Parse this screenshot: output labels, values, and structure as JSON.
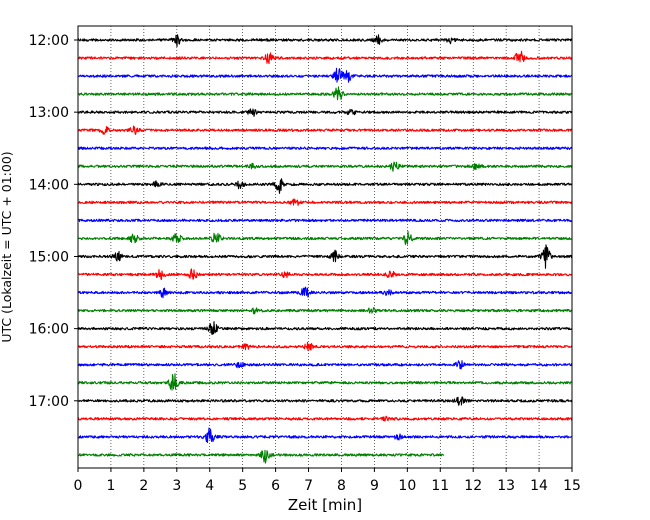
{
  "chart_data": {
    "type": "line",
    "title": "",
    "xlabel": "Zeit  [min]",
    "ylabel": "UTC (Lokalzeit = UTC + 01:00)",
    "xlim": [
      0,
      15
    ],
    "x_ticks": [
      "0",
      "1",
      "2",
      "3",
      "4",
      "5",
      "6",
      "7",
      "8",
      "9",
      "10",
      "11",
      "12",
      "13",
      "14",
      "15"
    ],
    "y_ticks": [
      "12:00",
      "13:00",
      "14:00",
      "15:00",
      "16:00",
      "17:00"
    ],
    "grid": "vertical dotted lines at each minute",
    "trace_interval_minutes": 15,
    "series_colors": [
      "#000000",
      "#ff0000",
      "#0000ff",
      "#008000"
    ],
    "traces": [
      {
        "start": "12:00",
        "color": "#000000",
        "events": [
          {
            "t": 3.0,
            "amp": 0.6
          },
          {
            "t": 9.1,
            "amp": 0.5
          },
          {
            "t": 11.3,
            "amp": 0.3
          }
        ]
      },
      {
        "start": "12:15",
        "color": "#ff0000",
        "events": [
          {
            "t": 5.8,
            "amp": 0.6
          },
          {
            "t": 13.4,
            "amp": 1.1
          }
        ]
      },
      {
        "start": "12:30",
        "color": "#0000ff",
        "events": [
          {
            "t": 7.9,
            "amp": 0.9
          },
          {
            "t": 8.2,
            "amp": 0.6
          }
        ]
      },
      {
        "start": "12:45",
        "color": "#008000",
        "events": [
          {
            "t": 7.9,
            "amp": 0.9
          }
        ]
      },
      {
        "start": "13:00",
        "color": "#000000",
        "events": [
          {
            "t": 5.3,
            "amp": 0.4
          },
          {
            "t": 8.3,
            "amp": 0.3
          }
        ]
      },
      {
        "start": "13:15",
        "color": "#ff0000",
        "events": [
          {
            "t": 0.8,
            "amp": 0.5
          },
          {
            "t": 1.7,
            "amp": 0.4
          }
        ]
      },
      {
        "start": "13:30",
        "color": "#0000ff",
        "events": []
      },
      {
        "start": "13:45",
        "color": "#008000",
        "events": [
          {
            "t": 5.3,
            "amp": 0.2
          },
          {
            "t": 9.6,
            "amp": 0.5
          },
          {
            "t": 12.1,
            "amp": 0.3
          }
        ]
      },
      {
        "start": "14:00",
        "color": "#000000",
        "events": [
          {
            "t": 2.4,
            "amp": 0.3
          },
          {
            "t": 4.9,
            "amp": 0.4
          },
          {
            "t": 6.1,
            "amp": 0.9
          }
        ]
      },
      {
        "start": "14:15",
        "color": "#ff0000",
        "events": [
          {
            "t": 6.6,
            "amp": 0.3
          }
        ]
      },
      {
        "start": "14:30",
        "color": "#0000ff",
        "events": []
      },
      {
        "start": "14:45",
        "color": "#008000",
        "events": [
          {
            "t": 1.7,
            "amp": 0.5
          },
          {
            "t": 3.0,
            "amp": 0.5
          },
          {
            "t": 4.2,
            "amp": 0.7
          },
          {
            "t": 10.0,
            "amp": 0.7
          }
        ]
      },
      {
        "start": "15:00",
        "color": "#000000",
        "events": [
          {
            "t": 1.2,
            "amp": 0.5
          },
          {
            "t": 7.8,
            "amp": 0.6
          },
          {
            "t": 14.2,
            "amp": 1.2
          }
        ]
      },
      {
        "start": "15:15",
        "color": "#ff0000",
        "events": [
          {
            "t": 2.5,
            "amp": 0.5
          },
          {
            "t": 3.5,
            "amp": 0.6
          },
          {
            "t": 6.3,
            "amp": 0.3
          },
          {
            "t": 9.5,
            "amp": 0.4
          }
        ]
      },
      {
        "start": "15:30",
        "color": "#0000ff",
        "events": [
          {
            "t": 2.6,
            "amp": 0.5
          },
          {
            "t": 6.9,
            "amp": 0.6
          },
          {
            "t": 9.4,
            "amp": 0.3
          }
        ]
      },
      {
        "start": "15:45",
        "color": "#008000",
        "events": [
          {
            "t": 5.4,
            "amp": 0.3
          },
          {
            "t": 8.9,
            "amp": 0.3
          }
        ]
      },
      {
        "start": "16:00",
        "color": "#000000",
        "events": [
          {
            "t": 4.1,
            "amp": 0.8
          }
        ]
      },
      {
        "start": "16:15",
        "color": "#ff0000",
        "events": [
          {
            "t": 5.1,
            "amp": 0.3
          },
          {
            "t": 7.0,
            "amp": 0.4
          }
        ]
      },
      {
        "start": "16:30",
        "color": "#0000ff",
        "events": [
          {
            "t": 4.9,
            "amp": 0.3
          },
          {
            "t": 11.6,
            "amp": 0.5
          }
        ]
      },
      {
        "start": "16:45",
        "color": "#008000",
        "events": [
          {
            "t": 2.9,
            "amp": 1.1
          }
        ]
      },
      {
        "start": "17:00",
        "color": "#000000",
        "events": [
          {
            "t": 11.6,
            "amp": 0.5
          }
        ]
      },
      {
        "start": "17:15",
        "color": "#ff0000",
        "events": [
          {
            "t": 9.3,
            "amp": 0.2
          }
        ]
      },
      {
        "start": "17:30",
        "color": "#0000ff",
        "events": [
          {
            "t": 4.0,
            "amp": 1.0
          },
          {
            "t": 9.7,
            "amp": 0.3
          }
        ]
      },
      {
        "start": "17:45",
        "color": "#008000",
        "end_minute": 11.1,
        "events": [
          {
            "t": 5.7,
            "amp": 0.8
          }
        ]
      }
    ]
  }
}
